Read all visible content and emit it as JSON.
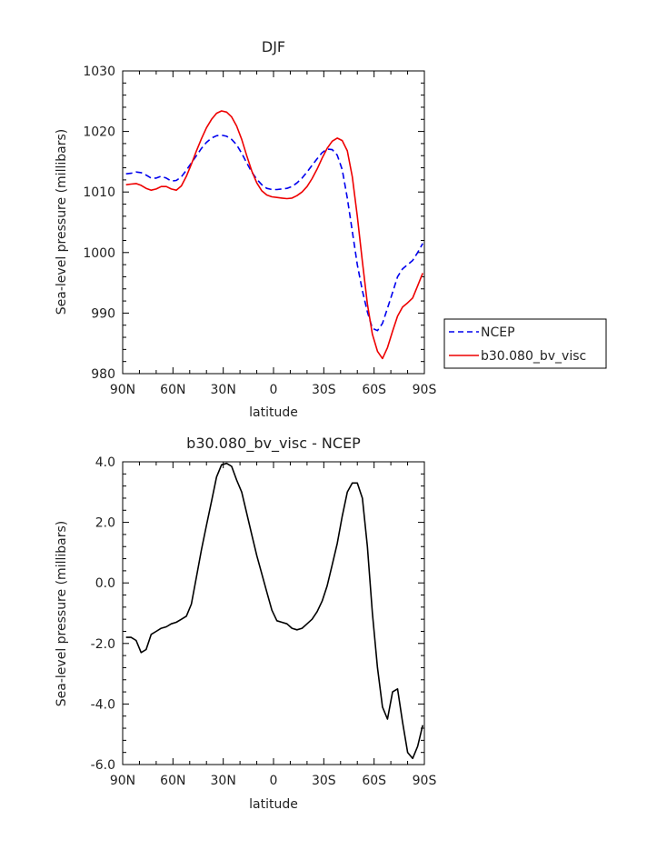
{
  "chart_data": [
    {
      "type": "line",
      "title": "DJF",
      "xlabel": "latitude",
      "ylabel": "Sea-level pressure (millibars)",
      "xlim": [
        90,
        -90
      ],
      "ylim": [
        980,
        1030
      ],
      "xticks": [
        90,
        60,
        30,
        0,
        -30,
        -60,
        -90
      ],
      "xtick_labels": [
        "90N",
        "60N",
        "30N",
        "0",
        "30S",
        "60S",
        "90S"
      ],
      "yticks": [
        980,
        990,
        1000,
        1010,
        1020,
        1030
      ],
      "ytick_labels": [
        "980",
        "990",
        "1000",
        "1010",
        "1020",
        "1030"
      ],
      "legend_position": "right",
      "series": [
        {
          "name": "NCEP",
          "color": "#0000ee",
          "dash": "dashed",
          "x": [
            88,
            85,
            82,
            79,
            76,
            73,
            70,
            67,
            64,
            61,
            58,
            55,
            52,
            49,
            46,
            43,
            40,
            37,
            34,
            31,
            28,
            25,
            22,
            19,
            16,
            13,
            10,
            7,
            4,
            1,
            -2,
            -5,
            -8,
            -11,
            -14,
            -17,
            -20,
            -23,
            -26,
            -29,
            -32,
            -35,
            -38,
            -41,
            -44,
            -47,
            -50,
            -53,
            -56,
            -59,
            -62,
            -65,
            -68,
            -71,
            -74,
            -77,
            -80,
            -83,
            -86,
            -89
          ],
          "values": [
            1013,
            1013.1,
            1013.3,
            1013.2,
            1012.8,
            1012.3,
            1012.3,
            1012.6,
            1012.3,
            1011.8,
            1011.9,
            1012.5,
            1013.6,
            1014.8,
            1016,
            1017.2,
            1018.2,
            1018.9,
            1019.3,
            1019.4,
            1019.2,
            1018.7,
            1017.8,
            1016.4,
            1014.8,
            1013.3,
            1012.1,
            1011.2,
            1010.6,
            1010.4,
            1010.4,
            1010.5,
            1010.6,
            1010.9,
            1011.5,
            1012.3,
            1013.3,
            1014.4,
            1015.5,
            1016.5,
            1017.1,
            1017,
            1016.1,
            1013.7,
            1009,
            1003.5,
            998,
            993.7,
            990.2,
            987.5,
            987.1,
            988.3,
            990.8,
            993.4,
            996,
            997.3,
            998,
            998.7,
            1000,
            1001.5
          ]
        },
        {
          "name": "b30.080_bv_visc",
          "color": "#ee0000",
          "dash": "solid",
          "x": [
            88,
            85,
            82,
            79,
            76,
            73,
            70,
            67,
            64,
            61,
            58,
            55,
            52,
            49,
            46,
            43,
            40,
            37,
            34,
            31,
            28,
            25,
            22,
            19,
            16,
            13,
            10,
            7,
            4,
            1,
            -2,
            -5,
            -8,
            -11,
            -14,
            -17,
            -20,
            -23,
            -26,
            -29,
            -32,
            -35,
            -38,
            -41,
            -44,
            -47,
            -50,
            -53,
            -56,
            -59,
            -62,
            -65,
            -68,
            -71,
            -74,
            -77,
            -80,
            -83,
            -86,
            -89
          ],
          "values": [
            1011.2,
            1011.3,
            1011.4,
            1011.1,
            1010.6,
            1010.3,
            1010.5,
            1010.9,
            1010.9,
            1010.5,
            1010.3,
            1011,
            1012.6,
            1014.6,
            1016.8,
            1018.8,
            1020.6,
            1022,
            1023,
            1023.4,
            1023.2,
            1022.4,
            1020.9,
            1018.7,
            1016,
            1013.5,
            1011.5,
            1010.2,
            1009.5,
            1009.2,
            1009.1,
            1009,
            1008.9,
            1009,
            1009.4,
            1010,
            1010.9,
            1012.2,
            1013.8,
            1015.6,
            1017.2,
            1018.4,
            1018.9,
            1018.5,
            1016.8,
            1012.5,
            1006,
            998.5,
            991.5,
            986.5,
            983.7,
            982.5,
            984.3,
            987,
            989.5,
            991,
            991.7,
            992.5,
            994.5,
            996.6
          ]
        }
      ]
    },
    {
      "type": "line",
      "title": "b30.080_bv_visc - NCEP",
      "xlabel": "latitude",
      "ylabel": "Sea-level pressure (millibars)",
      "xlim": [
        90,
        -90
      ],
      "ylim": [
        -6,
        4
      ],
      "xticks": [
        90,
        60,
        30,
        0,
        -30,
        -60,
        -90
      ],
      "xtick_labels": [
        "90N",
        "60N",
        "30N",
        "0",
        "30S",
        "60S",
        "90S"
      ],
      "yticks": [
        -6,
        -4,
        -2,
        0,
        2,
        4
      ],
      "ytick_labels": [
        "-6.0",
        "-4.0",
        "-2.0",
        "0.0",
        "2.0",
        "4.0"
      ],
      "series": [
        {
          "color": "#000000",
          "dash": "solid",
          "x": [
            88,
            85,
            82,
            79,
            76,
            73,
            70,
            67,
            64,
            61,
            58,
            55,
            52,
            49,
            46,
            43,
            40,
            37,
            34,
            31,
            28,
            25,
            22,
            19,
            16,
            13,
            10,
            7,
            4,
            1,
            -2,
            -5,
            -8,
            -11,
            -14,
            -17,
            -20,
            -23,
            -26,
            -29,
            -32,
            -35,
            -38,
            -41,
            -44,
            -47,
            -50,
            -53,
            -56,
            -59,
            -62,
            -65,
            -68,
            -71,
            -74,
            -77,
            -80,
            -83,
            -86,
            -89
          ],
          "values": [
            -1.8,
            -1.8,
            -1.9,
            -2.3,
            -2.2,
            -1.7,
            -1.6,
            -1.5,
            -1.45,
            -1.35,
            -1.3,
            -1.2,
            -1.1,
            -0.7,
            0.2,
            1.1,
            1.9,
            2.7,
            3.5,
            3.9,
            3.95,
            3.85,
            3.4,
            3,
            2.3,
            1.6,
            0.9,
            0.3,
            -0.3,
            -0.9,
            -1.25,
            -1.3,
            -1.35,
            -1.5,
            -1.55,
            -1.5,
            -1.35,
            -1.2,
            -0.95,
            -0.6,
            -0.1,
            0.6,
            1.3,
            2.2,
            3,
            3.3,
            3.3,
            2.8,
            1.2,
            -1,
            -2.8,
            -4.1,
            -4.5,
            -3.6,
            -3.5,
            -4.6,
            -5.6,
            -5.8,
            -5.4,
            -4.7
          ]
        }
      ]
    }
  ]
}
